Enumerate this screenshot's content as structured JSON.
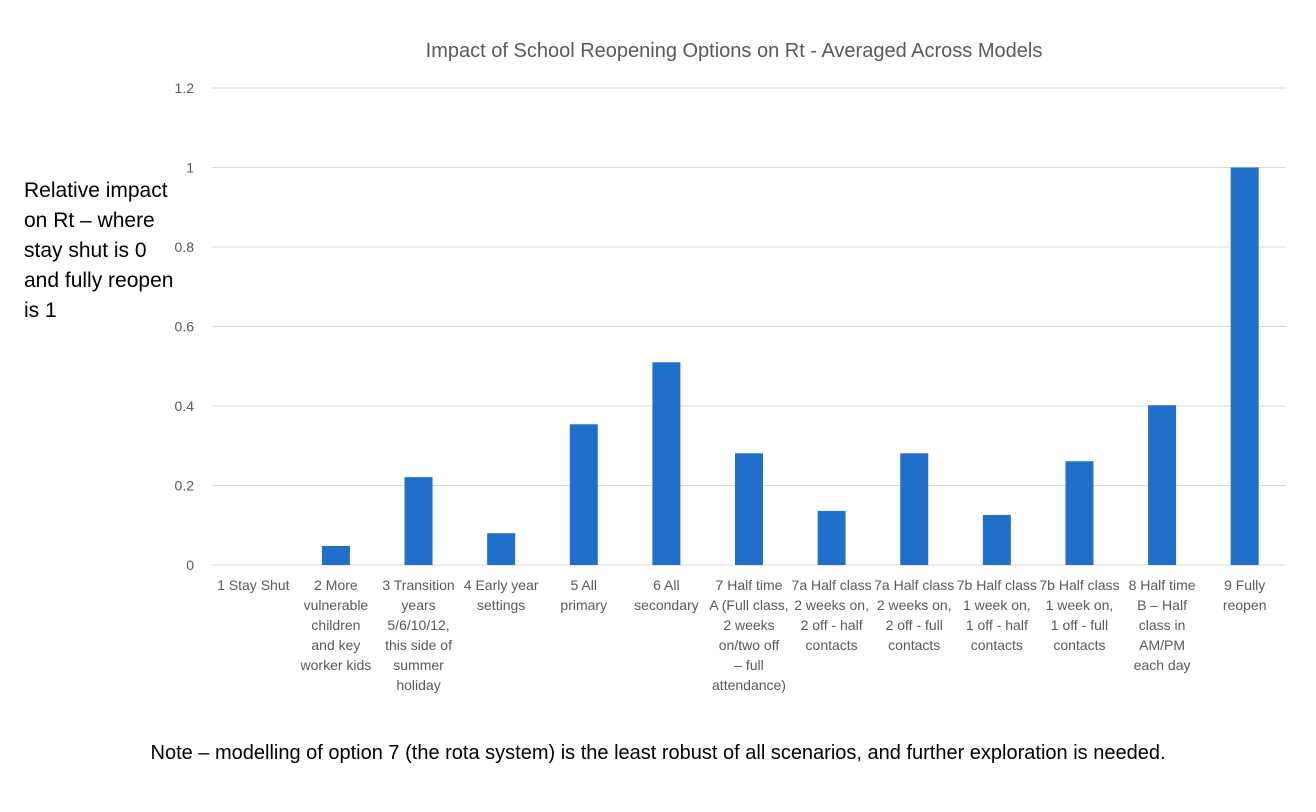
{
  "chart_data": {
    "type": "bar",
    "title": "Impact of School Reopening Options on Rt - Averaged Across Models",
    "ylabel": "Relative impact on Rt – where stay shut is 0 and fully reopen is 1",
    "xlabel": "",
    "ylim": [
      0,
      1.2
    ],
    "yticks": [
      "0",
      "0.2",
      "0.4",
      "0.6",
      "0.8",
      "1",
      "1.2"
    ],
    "grid": true,
    "legend": "none",
    "bar_color": "#1f6fcb",
    "categories": [
      [
        "1 Stay Shut"
      ],
      [
        "2 More",
        "vulnerable",
        "children",
        "and key",
        "worker kids"
      ],
      [
        "3 Transition",
        "years",
        "5/6/10/12,",
        "this side of",
        "summer",
        "holiday"
      ],
      [
        "4 Early year",
        "settings"
      ],
      [
        "5 All",
        "primary"
      ],
      [
        "6 All",
        "secondary"
      ],
      [
        "7 Half time",
        "A (Full class,",
        "2 weeks",
        "on/two off",
        "– full",
        "attendance)"
      ],
      [
        "7a Half class",
        "2 weeks on,",
        "2 off - half",
        "contacts"
      ],
      [
        "7a Half class",
        "2 weeks on,",
        "2 off - full",
        "contacts"
      ],
      [
        "7b Half class",
        "1 week on,",
        "1 off - half",
        "contacts"
      ],
      [
        "7b Half class",
        "1 week on,",
        "1 off - full",
        "contacts"
      ],
      [
        "8 Half time",
        "B – Half",
        "class in",
        "AM/PM",
        "each day"
      ],
      [
        "9 Fully",
        "reopen"
      ]
    ],
    "values": [
      0,
      0.048,
      0.221,
      0.08,
      0.354,
      0.51,
      0.281,
      0.136,
      0.281,
      0.126,
      0.261,
      0.402,
      1.0
    ]
  },
  "note": "Note – modelling of option 7 (the rota system) is the least robust of all scenarios, and further exploration is needed."
}
